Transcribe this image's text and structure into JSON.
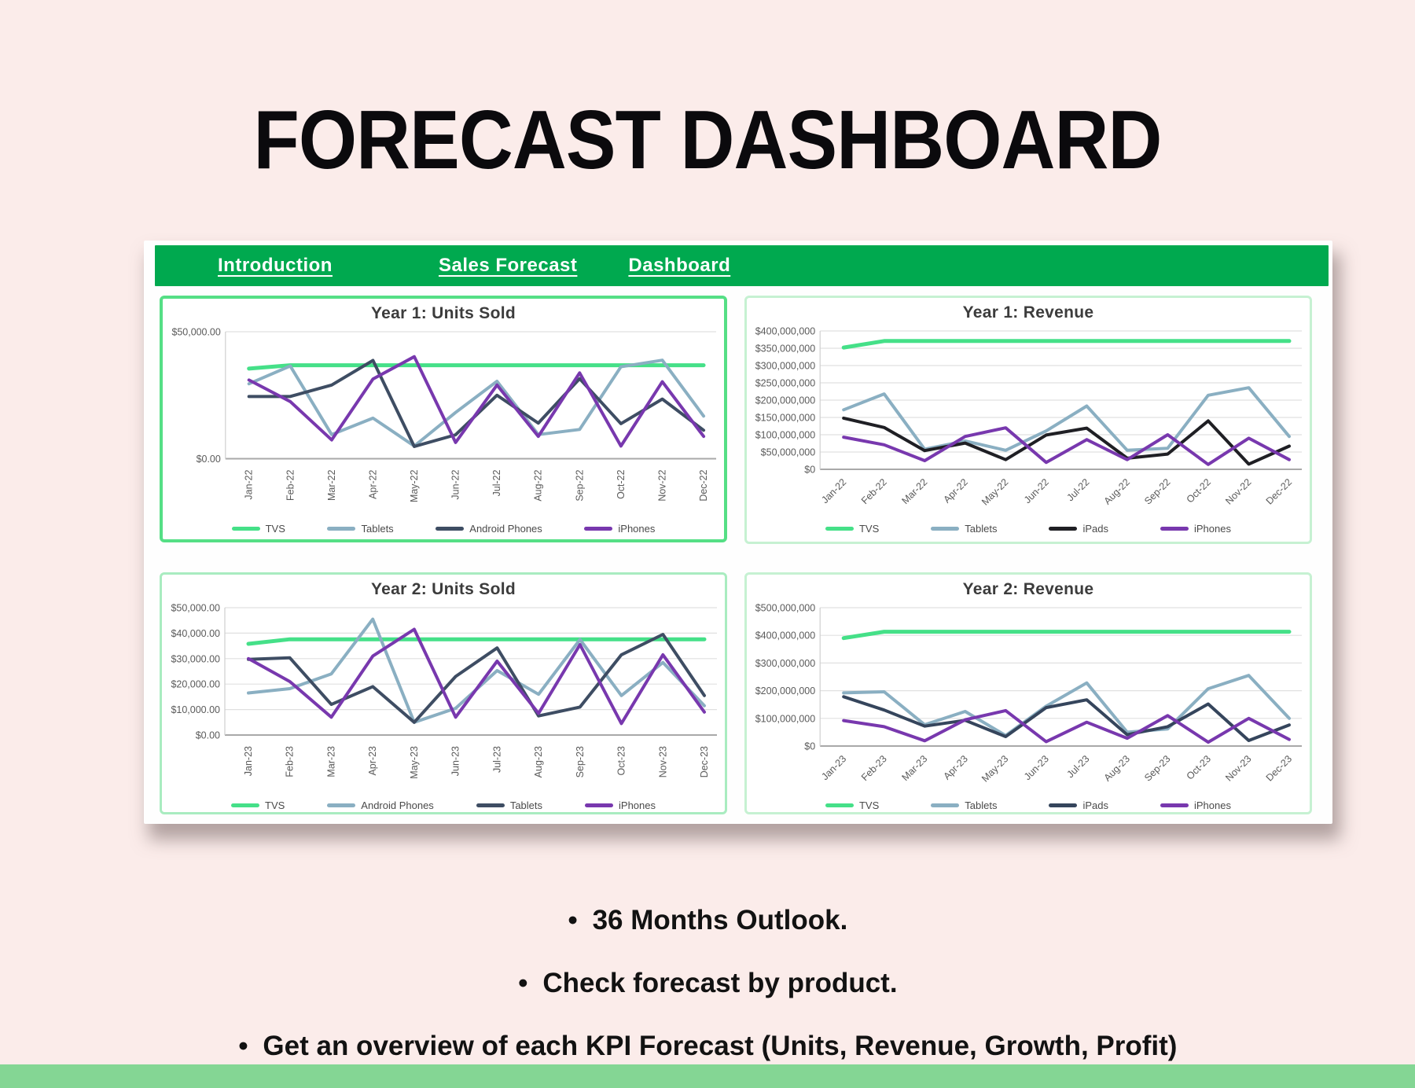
{
  "page": {
    "title": "FORECAST DASHBOARD",
    "background_color": "#fbecea",
    "footer_bar_color": "#84d694"
  },
  "workbook": {
    "nav_background_color": "#00a94f",
    "tabs": [
      {
        "label": "Introduction"
      },
      {
        "label": "Sales Forecast"
      },
      {
        "label": "Dashboard"
      }
    ]
  },
  "bullets": [
    "36 Months Outlook.",
    "Check forecast by product.",
    "Get an overview of each KPI Forecast (Units, Revenue, Growth, Profit)"
  ],
  "chart_data": [
    {
      "type": "line",
      "title": "Year 1: Units Sold",
      "x": [
        "Jan-22",
        "Feb-22",
        "Mar-22",
        "Apr-22",
        "May-22",
        "Jun-22",
        "Jul-22",
        "Aug-22",
        "Sep-22",
        "Oct-22",
        "Nov-22",
        "Dec-22"
      ],
      "x_label_rotation": 90,
      "ylim": [
        0,
        50000
      ],
      "grid": true,
      "legend_position": "bottom",
      "y_ticks": [
        {
          "label": "$50,000.00",
          "value": 50000
        },
        {
          "label": "$0.00",
          "value": 0
        }
      ],
      "series": [
        {
          "name": "TVS",
          "color": "#45e088",
          "width": 5,
          "values": [
            35500,
            36800,
            36800,
            36800,
            36800,
            36800,
            36800,
            36800,
            36800,
            36800,
            36800,
            36800
          ]
        },
        {
          "name": "Tablets",
          "color": "#8aafc2",
          "width": 4,
          "values": [
            29500,
            36500,
            9500,
            16000,
            5000,
            18200,
            30500,
            9500,
            11500,
            36200,
            38800,
            16800
          ]
        },
        {
          "name": "Android Phones",
          "color": "#3e4d63",
          "width": 4,
          "values": [
            24500,
            24500,
            29000,
            38700,
            4800,
            9400,
            25000,
            14000,
            31500,
            13800,
            23500,
            11200
          ]
        },
        {
          "name": "iPhones",
          "color": "#7838ae",
          "width": 4,
          "values": [
            31000,
            22500,
            7400,
            31400,
            40200,
            6400,
            29000,
            8800,
            33800,
            5000,
            30300,
            8800
          ]
        }
      ]
    },
    {
      "type": "line",
      "title": "Year 1: Revenue",
      "x": [
        "Jan-22",
        "Feb-22",
        "Mar-22",
        "Apr-22",
        "May-22",
        "Jun-22",
        "Jul-22",
        "Aug-22",
        "Sep-22",
        "Oct-22",
        "Nov-22",
        "Dec-22"
      ],
      "x_label_rotation": 45,
      "ylim": [
        0,
        400000000
      ],
      "grid": true,
      "legend_position": "bottom",
      "y_ticks": [
        {
          "label": "$400,000,000",
          "value": 400000000
        },
        {
          "label": "$350,000,000",
          "value": 350000000
        },
        {
          "label": "$300,000,000",
          "value": 300000000
        },
        {
          "label": "$250,000,000",
          "value": 250000000
        },
        {
          "label": "$200,000,000",
          "value": 200000000
        },
        {
          "label": "$150,000,000",
          "value": 150000000
        },
        {
          "label": "$100,000,000",
          "value": 100000000
        },
        {
          "label": "$50,000,000",
          "value": 50000000
        },
        {
          "label": "$0",
          "value": 0
        }
      ],
      "series": [
        {
          "name": "TVS",
          "color": "#45e088",
          "width": 5,
          "values": [
            352000000,
            371000000,
            371000000,
            371000000,
            371000000,
            371000000,
            371000000,
            371000000,
            371000000,
            371000000,
            371000000,
            371000000
          ]
        },
        {
          "name": "Tablets",
          "color": "#8aafc2",
          "width": 4,
          "values": [
            172000000,
            218000000,
            58000000,
            82000000,
            55000000,
            111000000,
            183000000,
            55000000,
            61000000,
            214000000,
            236000000,
            95000000
          ]
        },
        {
          "name": "iPads",
          "color": "#1f1f24",
          "width": 4,
          "values": [
            148000000,
            121000000,
            54000000,
            76000000,
            28000000,
            99000000,
            119000000,
            32000000,
            44000000,
            140000000,
            15000000,
            67000000
          ]
        },
        {
          "name": "iPhones",
          "color": "#7838ae",
          "width": 4,
          "values": [
            93000000,
            71000000,
            25000000,
            95000000,
            120000000,
            20000000,
            86000000,
            28000000,
            100000000,
            14000000,
            90000000,
            28000000
          ]
        }
      ]
    },
    {
      "type": "line",
      "title": "Year 2: Units Sold",
      "x": [
        "Jan-23",
        "Feb-23",
        "Mar-23",
        "Apr-23",
        "May-23",
        "Jun-23",
        "Jul-23",
        "Aug-23",
        "Sep-23",
        "Oct-23",
        "Nov-23",
        "Dec-23"
      ],
      "x_label_rotation": 90,
      "ylim": [
        0,
        50000
      ],
      "grid": true,
      "legend_position": "bottom",
      "y_ticks": [
        {
          "label": "$50,000.00",
          "value": 50000
        },
        {
          "label": "$40,000.00",
          "value": 40000
        },
        {
          "label": "$30,000.00",
          "value": 30000
        },
        {
          "label": "$20,000.00",
          "value": 20000
        },
        {
          "label": "$10,000.00",
          "value": 10000
        },
        {
          "label": "$0.00",
          "value": 0
        }
      ],
      "series": [
        {
          "name": "TVS",
          "color": "#45e088",
          "width": 5,
          "values": [
            35800,
            37600,
            37600,
            37600,
            37600,
            37600,
            37600,
            37600,
            37600,
            37600,
            37600,
            37600
          ]
        },
        {
          "name": "Android Phones",
          "color": "#8aafc2",
          "width": 4,
          "values": [
            16500,
            18200,
            24000,
            45500,
            5000,
            10500,
            25300,
            16000,
            37500,
            15500,
            28500,
            11500
          ]
        },
        {
          "name": "Tablets",
          "color": "#3e4d63",
          "width": 4,
          "values": [
            29700,
            30300,
            12000,
            19000,
            5000,
            23000,
            34200,
            7500,
            11000,
            31500,
            39500,
            15500
          ]
        },
        {
          "name": "iPhones",
          "color": "#7838ae",
          "width": 4,
          "values": [
            30000,
            21000,
            7000,
            31000,
            41500,
            7000,
            29000,
            8500,
            35500,
            4500,
            31500,
            9000
          ]
        }
      ]
    },
    {
      "type": "line",
      "title": "Year 2: Revenue",
      "x": [
        "Jan-23",
        "Feb-23",
        "Mar-23",
        "Apr-23",
        "May-23",
        "Jun-23",
        "Jul-23",
        "Aug-23",
        "Sep-23",
        "Oct-23",
        "Nov-23",
        "Dec-23"
      ],
      "x_label_rotation": 45,
      "ylim": [
        0,
        500000000
      ],
      "grid": true,
      "legend_position": "bottom",
      "y_ticks": [
        {
          "label": "$500,000,000",
          "value": 500000000
        },
        {
          "label": "$400,000,000",
          "value": 400000000
        },
        {
          "label": "$300,000,000",
          "value": 300000000
        },
        {
          "label": "$200,000,000",
          "value": 200000000
        },
        {
          "label": "$100,000,000",
          "value": 100000000
        },
        {
          "label": "$0",
          "value": 0
        }
      ],
      "series": [
        {
          "name": "TVS",
          "color": "#45e088",
          "width": 5,
          "values": [
            390000000,
            413000000,
            413000000,
            413000000,
            413000000,
            413000000,
            413000000,
            413000000,
            413000000,
            413000000,
            413000000,
            413000000
          ]
        },
        {
          "name": "Tablets",
          "color": "#8aafc2",
          "width": 4,
          "values": [
            192000000,
            196000000,
            77000000,
            125000000,
            38000000,
            144000000,
            228000000,
            50000000,
            62000000,
            207000000,
            255000000,
            100000000
          ]
        },
        {
          "name": "iPads",
          "color": "#35455c",
          "width": 4,
          "values": [
            178000000,
            130000000,
            72000000,
            93000000,
            34000000,
            139000000,
            167000000,
            41000000,
            70000000,
            152000000,
            20000000,
            76000000
          ]
        },
        {
          "name": "iPhones",
          "color": "#7838ae",
          "width": 4,
          "values": [
            92000000,
            70000000,
            19000000,
            95000000,
            128000000,
            16000000,
            86000000,
            28000000,
            110000000,
            14000000,
            100000000,
            24000000
          ]
        }
      ]
    }
  ]
}
